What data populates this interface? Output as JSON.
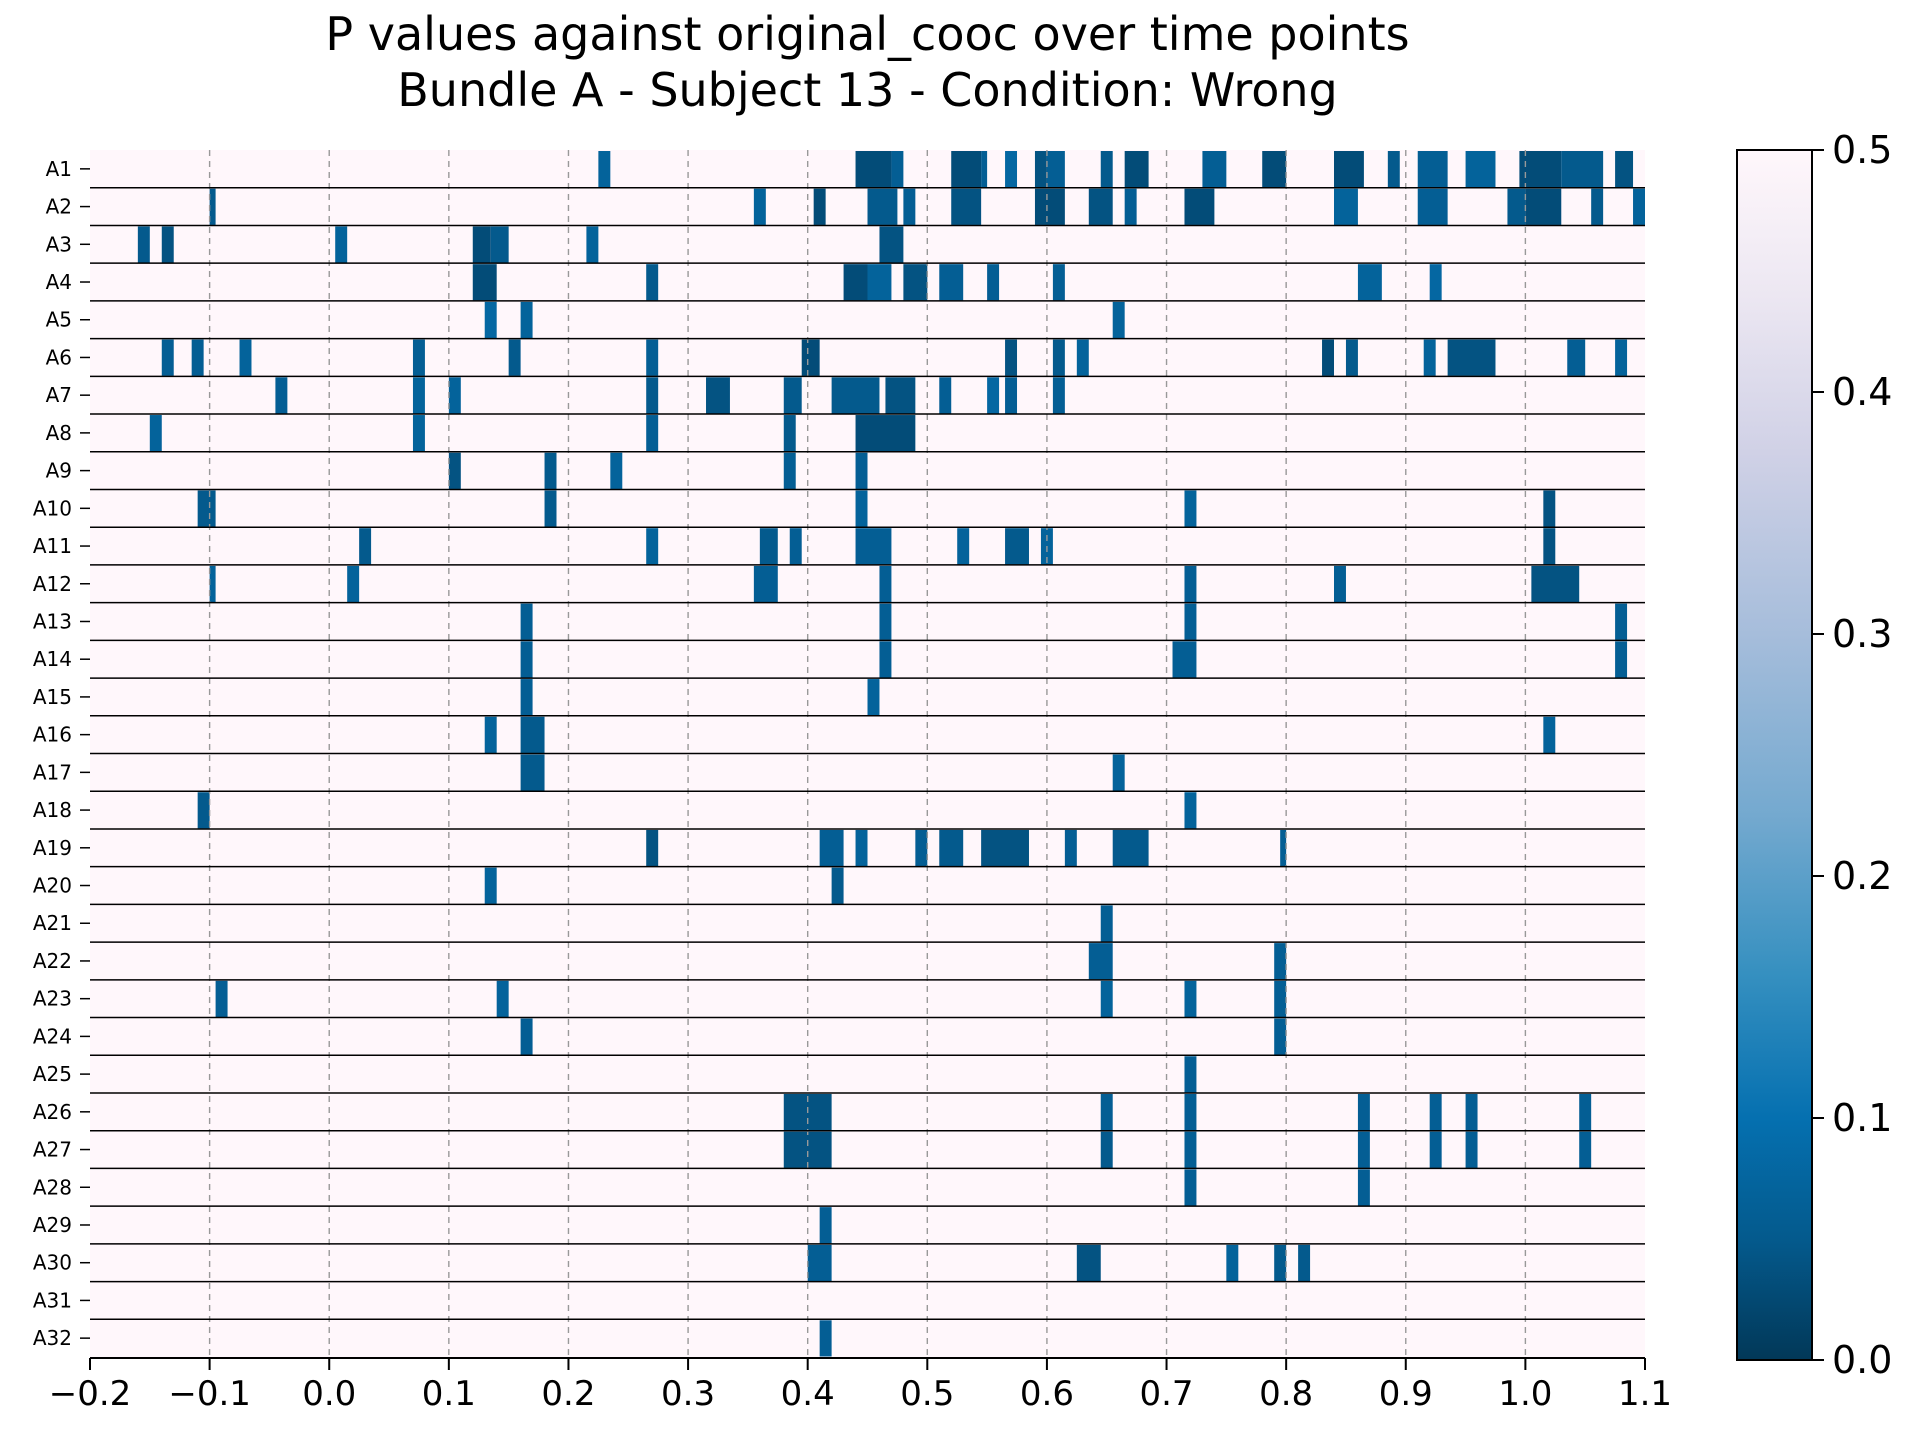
{
  "chart_data": {
    "type": "heatmap",
    "title": "P values against original_cooc over time points",
    "subtitle": "Bundle A - Subject 13 - Condition: Wrong",
    "xlabel": "",
    "ylabel": "",
    "xlim": [
      -0.2,
      1.1
    ],
    "x_ticks": [
      "−0.2",
      "−0.1",
      "0.0",
      "0.1",
      "0.2",
      "0.3",
      "0.4",
      "0.5",
      "0.6",
      "0.7",
      "0.8",
      "0.9",
      "1.0",
      "1.1"
    ],
    "x_tick_values": [
      -0.2,
      -0.1,
      0.0,
      0.1,
      0.2,
      0.3,
      0.4,
      0.5,
      0.6,
      0.7,
      0.8,
      0.9,
      1.0,
      1.1
    ],
    "x_gridlines": "dashed vertical at each x tick",
    "rows": [
      "A1",
      "A2",
      "A3",
      "A4",
      "A5",
      "A6",
      "A7",
      "A8",
      "A9",
      "A10",
      "A11",
      "A12",
      "A13",
      "A14",
      "A15",
      "A16",
      "A17",
      "A18",
      "A19",
      "A20",
      "A21",
      "A22",
      "A23",
      "A24",
      "A25",
      "A26",
      "A27",
      "A28",
      "A29",
      "A30",
      "A31",
      "A32"
    ],
    "background_value": 0.5,
    "colorscale": "PuBu reversed (0.0 dark navy → 0.5 near white)",
    "colorbar": {
      "range": [
        0.0,
        0.5
      ],
      "ticks": [
        "0.0",
        "0.1",
        "0.2",
        "0.3",
        "0.4",
        "0.5"
      ],
      "tick_values": [
        0.0,
        0.1,
        0.2,
        0.3,
        0.4,
        0.5
      ]
    },
    "cells": [
      {
        "row": "A1",
        "segments": [
          [
            0.225,
            0.235,
            0.07
          ],
          [
            0.44,
            0.47,
            0.03
          ],
          [
            0.47,
            0.48,
            0.06
          ],
          [
            0.52,
            0.545,
            0.03
          ],
          [
            0.545,
            0.55,
            0.06
          ],
          [
            0.565,
            0.575,
            0.08
          ],
          [
            0.59,
            0.6,
            0.04
          ],
          [
            0.6,
            0.615,
            0.06
          ],
          [
            0.645,
            0.655,
            0.05
          ],
          [
            0.665,
            0.685,
            0.03
          ],
          [
            0.73,
            0.75,
            0.06
          ],
          [
            0.78,
            0.8,
            0.03
          ],
          [
            0.84,
            0.865,
            0.03
          ],
          [
            0.885,
            0.895,
            0.05
          ],
          [
            0.91,
            0.935,
            0.06
          ],
          [
            0.95,
            0.975,
            0.07
          ],
          [
            0.995,
            1.03,
            0.03
          ],
          [
            1.03,
            1.065,
            0.05
          ],
          [
            1.075,
            1.09,
            0.04
          ]
        ]
      },
      {
        "row": "A2",
        "segments": [
          [
            -0.1,
            -0.095,
            0.05
          ],
          [
            0.355,
            0.365,
            0.07
          ],
          [
            0.405,
            0.415,
            0.03
          ],
          [
            0.45,
            0.475,
            0.05
          ],
          [
            0.48,
            0.49,
            0.06
          ],
          [
            0.52,
            0.545,
            0.04
          ],
          [
            0.59,
            0.615,
            0.03
          ],
          [
            0.635,
            0.655,
            0.04
          ],
          [
            0.665,
            0.675,
            0.06
          ],
          [
            0.715,
            0.74,
            0.03
          ],
          [
            0.84,
            0.86,
            0.07
          ],
          [
            0.91,
            0.935,
            0.06
          ],
          [
            0.985,
            1.0,
            0.05
          ],
          [
            1.0,
            1.03,
            0.03
          ],
          [
            1.055,
            1.065,
            0.05
          ],
          [
            1.09,
            1.1,
            0.07
          ]
        ]
      },
      {
        "row": "A3",
        "segments": [
          [
            -0.16,
            -0.15,
            0.05
          ],
          [
            -0.14,
            -0.13,
            0.04
          ],
          [
            0.005,
            0.015,
            0.07
          ],
          [
            0.12,
            0.135,
            0.03
          ],
          [
            0.135,
            0.15,
            0.05
          ],
          [
            0.215,
            0.225,
            0.07
          ],
          [
            0.46,
            0.48,
            0.04
          ]
        ]
      },
      {
        "row": "A4",
        "segments": [
          [
            0.12,
            0.14,
            0.03
          ],
          [
            0.265,
            0.275,
            0.05
          ],
          [
            0.43,
            0.45,
            0.03
          ],
          [
            0.45,
            0.47,
            0.07
          ],
          [
            0.48,
            0.5,
            0.04
          ],
          [
            0.51,
            0.53,
            0.06
          ],
          [
            0.55,
            0.56,
            0.06
          ],
          [
            0.605,
            0.615,
            0.06
          ],
          [
            0.86,
            0.88,
            0.07
          ],
          [
            0.92,
            0.93,
            0.08
          ]
        ]
      },
      {
        "row": "A5",
        "segments": [
          [
            0.13,
            0.14,
            0.08
          ],
          [
            0.16,
            0.17,
            0.07
          ],
          [
            0.655,
            0.665,
            0.07
          ]
        ]
      },
      {
        "row": "A6",
        "segments": [
          [
            -0.14,
            -0.13,
            0.06
          ],
          [
            -0.115,
            -0.105,
            0.06
          ],
          [
            -0.075,
            -0.065,
            0.07
          ],
          [
            0.07,
            0.08,
            0.06
          ],
          [
            0.15,
            0.16,
            0.05
          ],
          [
            0.265,
            0.275,
            0.06
          ],
          [
            0.395,
            0.41,
            0.03
          ],
          [
            0.565,
            0.575,
            0.04
          ],
          [
            0.605,
            0.615,
            0.05
          ],
          [
            0.625,
            0.635,
            0.07
          ],
          [
            0.83,
            0.84,
            0.03
          ],
          [
            0.85,
            0.86,
            0.05
          ],
          [
            0.915,
            0.925,
            0.07
          ],
          [
            0.935,
            0.975,
            0.04
          ],
          [
            1.035,
            1.05,
            0.06
          ],
          [
            1.075,
            1.085,
            0.07
          ]
        ]
      },
      {
        "row": "A7",
        "segments": [
          [
            -0.045,
            -0.035,
            0.06
          ],
          [
            0.07,
            0.08,
            0.07
          ],
          [
            0.1,
            0.11,
            0.07
          ],
          [
            0.265,
            0.275,
            0.05
          ],
          [
            0.315,
            0.335,
            0.04
          ],
          [
            0.38,
            0.395,
            0.05
          ],
          [
            0.42,
            0.46,
            0.05
          ],
          [
            0.465,
            0.49,
            0.04
          ],
          [
            0.51,
            0.52,
            0.06
          ],
          [
            0.55,
            0.56,
            0.08
          ],
          [
            0.565,
            0.575,
            0.06
          ],
          [
            0.605,
            0.615,
            0.06
          ]
        ]
      },
      {
        "row": "A8",
        "segments": [
          [
            -0.15,
            -0.14,
            0.07
          ],
          [
            0.07,
            0.08,
            0.07
          ],
          [
            0.265,
            0.275,
            0.06
          ],
          [
            0.38,
            0.39,
            0.05
          ],
          [
            0.44,
            0.49,
            0.03
          ]
        ]
      },
      {
        "row": "A9",
        "segments": [
          [
            0.1,
            0.11,
            0.04
          ],
          [
            0.18,
            0.19,
            0.05
          ],
          [
            0.235,
            0.245,
            0.07
          ],
          [
            0.38,
            0.39,
            0.06
          ],
          [
            0.44,
            0.45,
            0.06
          ]
        ]
      },
      {
        "row": "A10",
        "segments": [
          [
            -0.11,
            -0.095,
            0.05
          ],
          [
            0.18,
            0.19,
            0.05
          ],
          [
            0.44,
            0.45,
            0.07
          ],
          [
            0.715,
            0.725,
            0.07
          ],
          [
            1.015,
            1.025,
            0.04
          ]
        ]
      },
      {
        "row": "A11",
        "segments": [
          [
            0.025,
            0.035,
            0.05
          ],
          [
            0.265,
            0.275,
            0.07
          ],
          [
            0.36,
            0.375,
            0.05
          ],
          [
            0.385,
            0.395,
            0.06
          ],
          [
            0.44,
            0.47,
            0.06
          ],
          [
            0.525,
            0.535,
            0.07
          ],
          [
            0.565,
            0.585,
            0.05
          ],
          [
            0.595,
            0.605,
            0.07
          ],
          [
            1.015,
            1.025,
            0.04
          ]
        ]
      },
      {
        "row": "A12",
        "segments": [
          [
            -0.1,
            -0.095,
            0.07
          ],
          [
            0.015,
            0.025,
            0.07
          ],
          [
            0.355,
            0.375,
            0.06
          ],
          [
            0.46,
            0.47,
            0.06
          ],
          [
            0.715,
            0.725,
            0.06
          ],
          [
            0.84,
            0.85,
            0.06
          ],
          [
            1.005,
            1.045,
            0.04
          ]
        ]
      },
      {
        "row": "A13",
        "segments": [
          [
            0.16,
            0.17,
            0.06
          ],
          [
            0.46,
            0.47,
            0.06
          ],
          [
            0.715,
            0.725,
            0.06
          ],
          [
            1.075,
            1.085,
            0.06
          ]
        ]
      },
      {
        "row": "A14",
        "segments": [
          [
            0.16,
            0.17,
            0.06
          ],
          [
            0.46,
            0.47,
            0.06
          ],
          [
            0.705,
            0.725,
            0.06
          ],
          [
            1.075,
            1.085,
            0.06
          ]
        ]
      },
      {
        "row": "A15",
        "segments": [
          [
            0.16,
            0.17,
            0.06
          ],
          [
            0.45,
            0.46,
            0.07
          ]
        ]
      },
      {
        "row": "A16",
        "segments": [
          [
            0.13,
            0.14,
            0.07
          ],
          [
            0.16,
            0.18,
            0.05
          ],
          [
            1.015,
            1.025,
            0.07
          ]
        ]
      },
      {
        "row": "A17",
        "segments": [
          [
            0.16,
            0.18,
            0.05
          ],
          [
            0.655,
            0.665,
            0.07
          ]
        ]
      },
      {
        "row": "A18",
        "segments": [
          [
            -0.11,
            -0.1,
            0.05
          ],
          [
            0.715,
            0.725,
            0.07
          ]
        ]
      },
      {
        "row": "A19",
        "segments": [
          [
            0.265,
            0.275,
            0.04
          ],
          [
            0.41,
            0.43,
            0.06
          ],
          [
            0.44,
            0.45,
            0.07
          ],
          [
            0.49,
            0.5,
            0.06
          ],
          [
            0.51,
            0.53,
            0.05
          ],
          [
            0.545,
            0.585,
            0.04
          ],
          [
            0.615,
            0.625,
            0.06
          ],
          [
            0.655,
            0.685,
            0.05
          ],
          [
            0.795,
            0.8,
            0.06
          ]
        ]
      },
      {
        "row": "A20",
        "segments": [
          [
            0.13,
            0.14,
            0.07
          ],
          [
            0.42,
            0.43,
            0.05
          ]
        ]
      },
      {
        "row": "A21",
        "segments": [
          [
            0.645,
            0.655,
            0.06
          ]
        ]
      },
      {
        "row": "A22",
        "segments": [
          [
            0.635,
            0.655,
            0.06
          ],
          [
            0.79,
            0.8,
            0.06
          ]
        ]
      },
      {
        "row": "A23",
        "segments": [
          [
            -0.095,
            -0.085,
            0.06
          ],
          [
            0.14,
            0.15,
            0.07
          ],
          [
            0.645,
            0.655,
            0.07
          ],
          [
            0.715,
            0.725,
            0.07
          ],
          [
            0.79,
            0.8,
            0.06
          ]
        ]
      },
      {
        "row": "A24",
        "segments": [
          [
            0.16,
            0.17,
            0.06
          ],
          [
            0.79,
            0.8,
            0.06
          ]
        ]
      },
      {
        "row": "A25",
        "segments": [
          [
            0.715,
            0.725,
            0.06
          ]
        ]
      },
      {
        "row": "A26",
        "segments": [
          [
            0.38,
            0.42,
            0.04
          ],
          [
            0.645,
            0.655,
            0.06
          ],
          [
            0.715,
            0.725,
            0.06
          ],
          [
            0.86,
            0.87,
            0.06
          ],
          [
            0.92,
            0.93,
            0.06
          ],
          [
            0.95,
            0.96,
            0.06
          ],
          [
            1.045,
            1.055,
            0.06
          ]
        ]
      },
      {
        "row": "A27",
        "segments": [
          [
            0.38,
            0.42,
            0.04
          ],
          [
            0.645,
            0.655,
            0.05
          ],
          [
            0.715,
            0.725,
            0.06
          ],
          [
            0.86,
            0.87,
            0.06
          ],
          [
            0.92,
            0.93,
            0.06
          ],
          [
            0.95,
            0.96,
            0.06
          ],
          [
            1.045,
            1.055,
            0.06
          ]
        ]
      },
      {
        "row": "A28",
        "segments": [
          [
            0.715,
            0.725,
            0.06
          ],
          [
            0.86,
            0.87,
            0.06
          ]
        ]
      },
      {
        "row": "A29",
        "segments": [
          [
            0.41,
            0.42,
            0.06
          ]
        ]
      },
      {
        "row": "A30",
        "segments": [
          [
            0.4,
            0.42,
            0.06
          ],
          [
            0.625,
            0.645,
            0.04
          ],
          [
            0.75,
            0.76,
            0.07
          ],
          [
            0.79,
            0.8,
            0.05
          ],
          [
            0.81,
            0.82,
            0.05
          ]
        ]
      },
      {
        "row": "A31",
        "segments": []
      },
      {
        "row": "A32",
        "segments": [
          [
            0.41,
            0.42,
            0.06
          ]
        ]
      }
    ]
  }
}
